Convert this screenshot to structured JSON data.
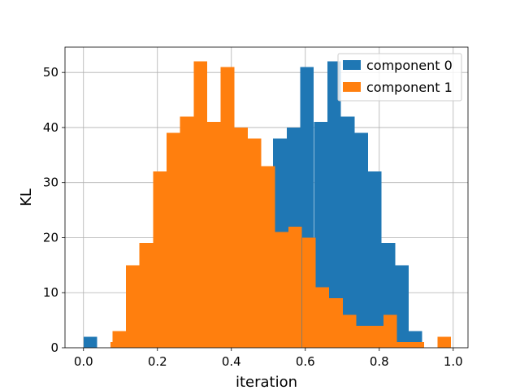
{
  "chart_data": {
    "type": "bar",
    "title": "",
    "xlabel": "iteration",
    "ylabel": "KL",
    "xlim": [
      -0.05,
      1.04
    ],
    "ylim": [
      0,
      54.6
    ],
    "xticks": [
      0.0,
      0.2,
      0.4,
      0.6,
      0.8,
      1.0
    ],
    "xtick_labels": [
      "0.0",
      "0.2",
      "0.4",
      "0.6",
      "0.8",
      "1.0"
    ],
    "yticks": [
      0,
      10,
      20,
      30,
      40,
      50
    ],
    "ytick_labels": [
      "0",
      "10",
      "20",
      "30",
      "40",
      "50"
    ],
    "grid": true,
    "legend_position": "top-right",
    "bin_width": 0.0366,
    "series": [
      {
        "name": "component 0",
        "color": "#1f77b4",
        "bins": [
          [
            0.0,
            2
          ],
          [
            0.0366,
            0
          ],
          [
            0.0733,
            1
          ],
          [
            0.11,
            0
          ],
          [
            0.1466,
            0
          ],
          [
            0.1833,
            0
          ],
          [
            0.2199,
            0
          ],
          [
            0.2566,
            0
          ],
          [
            0.2932,
            0
          ],
          [
            0.3299,
            0
          ],
          [
            0.3665,
            0
          ],
          [
            0.4032,
            0
          ],
          [
            0.4398,
            0
          ],
          [
            0.4765,
            0
          ],
          [
            0.5131,
            38
          ],
          [
            0.5498,
            40
          ],
          [
            0.5864,
            51
          ],
          [
            0.6231,
            41
          ],
          [
            0.6597,
            52
          ],
          [
            0.6964,
            42
          ],
          [
            0.733,
            39
          ],
          [
            0.7697,
            32
          ],
          [
            0.8063,
            19
          ],
          [
            0.843,
            15
          ],
          [
            0.8796,
            3
          ]
        ]
      },
      {
        "name": "component 1",
        "color": "#ff7f0e",
        "bins": [
          [
            0.0733,
            1
          ],
          [
            0.0781,
            3
          ],
          [
            0.1147,
            15
          ],
          [
            0.1514,
            19
          ],
          [
            0.188,
            32
          ],
          [
            0.2247,
            39
          ],
          [
            0.2613,
            42
          ],
          [
            0.298,
            52
          ],
          [
            0.3346,
            41
          ],
          [
            0.3713,
            51
          ],
          [
            0.4079,
            40
          ],
          [
            0.4446,
            38
          ],
          [
            0.4812,
            33
          ],
          [
            0.5179,
            21
          ],
          [
            0.5545,
            22
          ],
          [
            0.5912,
            20
          ],
          [
            0.6278,
            11
          ],
          [
            0.6645,
            9
          ],
          [
            0.7011,
            6
          ],
          [
            0.7378,
            4
          ],
          [
            0.7744,
            4
          ],
          [
            0.8111,
            6
          ],
          [
            0.8477,
            1
          ],
          [
            0.8844,
            1
          ],
          [
            0.9577,
            2
          ]
        ]
      }
    ]
  }
}
